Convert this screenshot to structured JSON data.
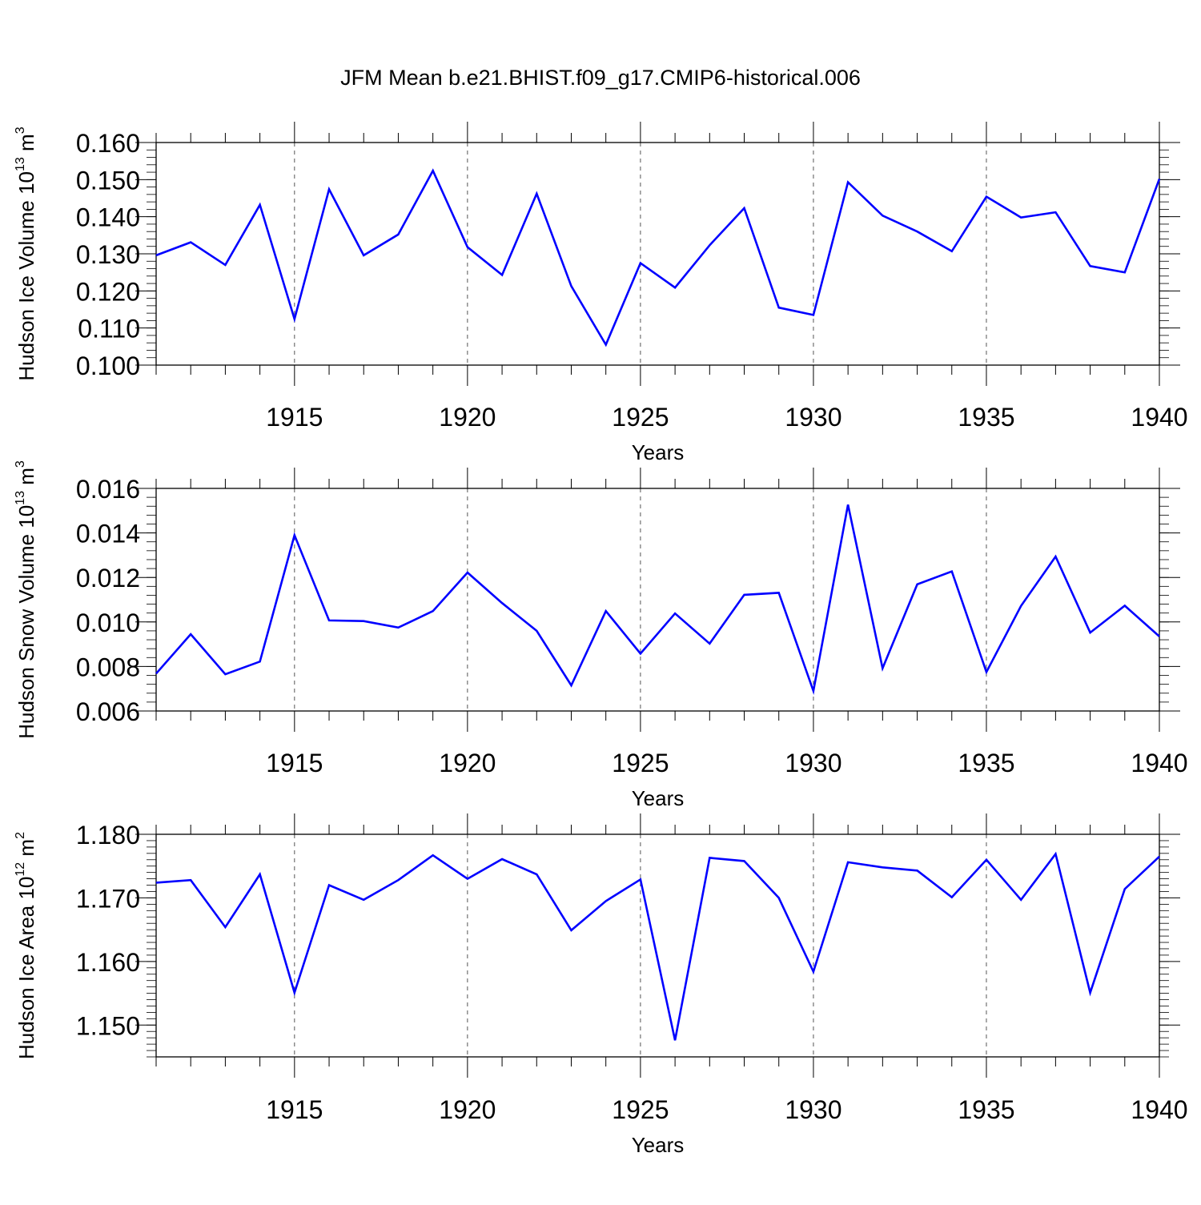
{
  "title": "JFM Mean b.e21.BHIST.f09_g17.CMIP6-historical.006",
  "line_color": "#0000ff",
  "chart_data": [
    {
      "type": "line",
      "ylabel": "Hudson Ice Volume 10",
      "ylabel_exp": "13",
      "ylabel_unit": " m",
      "ylabel_unit_exp": "3",
      "xlabel": "Years",
      "xlim": [
        1911,
        1940
      ],
      "ylim": [
        0.1,
        0.16
      ],
      "yticks": [
        0.1,
        0.11,
        0.12,
        0.13,
        0.14,
        0.15,
        0.16
      ],
      "ytick_labels": [
        "0.100",
        "0.110",
        "0.120",
        "0.130",
        "0.140",
        "0.150",
        "0.160"
      ],
      "yminor_step": 0.002,
      "xticks": [
        1915,
        1920,
        1925,
        1930,
        1935,
        1940
      ],
      "xtick_labels": [
        "1915",
        "1920",
        "1925",
        "1930",
        "1935",
        "1940"
      ],
      "x": [
        1911,
        1912,
        1913,
        1914,
        1915,
        1916,
        1917,
        1918,
        1919,
        1920,
        1921,
        1922,
        1923,
        1924,
        1925,
        1926,
        1927,
        1928,
        1929,
        1930,
        1931,
        1932,
        1933,
        1934,
        1935,
        1936,
        1937,
        1938,
        1939,
        1940
      ],
      "values": [
        0.1296,
        0.1331,
        0.127,
        0.1432,
        0.1124,
        0.1474,
        0.1296,
        0.1352,
        0.1524,
        0.1318,
        0.1243,
        0.1462,
        0.1213,
        0.1055,
        0.1275,
        0.1209,
        0.1323,
        0.1423,
        0.1155,
        0.1135,
        0.1493,
        0.1403,
        0.136,
        0.1307,
        0.1454,
        0.1398,
        0.1412,
        0.1267,
        0.125,
        0.1502
      ]
    },
    {
      "type": "line",
      "ylabel": "Hudson Snow Volume 10",
      "ylabel_exp": "13",
      "ylabel_unit": " m",
      "ylabel_unit_exp": "3",
      "xlabel": "Years",
      "xlim": [
        1911,
        1940
      ],
      "ylim": [
        0.006,
        0.016
      ],
      "yticks": [
        0.006,
        0.008,
        0.01,
        0.012,
        0.014,
        0.016
      ],
      "ytick_labels": [
        "0.006",
        "0.008",
        "0.010",
        "0.012",
        "0.014",
        "0.016"
      ],
      "yminor_step": 0.0004,
      "xticks": [
        1915,
        1920,
        1925,
        1930,
        1935,
        1940
      ],
      "xtick_labels": [
        "1915",
        "1920",
        "1925",
        "1930",
        "1935",
        "1940"
      ],
      "x": [
        1911,
        1912,
        1913,
        1914,
        1915,
        1916,
        1917,
        1918,
        1919,
        1920,
        1921,
        1922,
        1923,
        1924,
        1925,
        1926,
        1927,
        1928,
        1929,
        1930,
        1931,
        1932,
        1933,
        1934,
        1935,
        1936,
        1937,
        1938,
        1939,
        1940
      ],
      "values": [
        0.00768,
        0.00945,
        0.00765,
        0.00822,
        0.0139,
        0.01007,
        0.01004,
        0.00975,
        0.01049,
        0.01222,
        0.01085,
        0.0096,
        0.00715,
        0.01049,
        0.00858,
        0.01038,
        0.00903,
        0.01122,
        0.01131,
        0.0069,
        0.01527,
        0.00792,
        0.01169,
        0.01227,
        0.00775,
        0.01072,
        0.01294,
        0.00952,
        0.01073,
        0.00935
      ]
    },
    {
      "type": "line",
      "ylabel": "Hudson Ice Area 10",
      "ylabel_exp": "12",
      "ylabel_unit": " m",
      "ylabel_unit_exp": "2",
      "xlabel": "Years",
      "xlim": [
        1911,
        1940
      ],
      "ylim": [
        1.145,
        1.18
      ],
      "yticks": [
        1.15,
        1.16,
        1.17,
        1.18
      ],
      "ytick_labels": [
        "1.150",
        "1.160",
        "1.170",
        "1.180"
      ],
      "yminor_step": 0.001,
      "xticks": [
        1915,
        1920,
        1925,
        1930,
        1935,
        1940
      ],
      "xtick_labels": [
        "1915",
        "1920",
        "1925",
        "1930",
        "1935",
        "1940"
      ],
      "x": [
        1911,
        1912,
        1913,
        1914,
        1915,
        1916,
        1917,
        1918,
        1919,
        1920,
        1921,
        1922,
        1923,
        1924,
        1925,
        1926,
        1927,
        1928,
        1929,
        1930,
        1931,
        1932,
        1933,
        1934,
        1935,
        1936,
        1937,
        1938,
        1939,
        1940
      ],
      "values": [
        1.1724,
        1.1728,
        1.1654,
        1.1737,
        1.1551,
        1.172,
        1.1697,
        1.1728,
        1.1767,
        1.173,
        1.1761,
        1.1737,
        1.1649,
        1.1695,
        1.1729,
        1.1476,
        1.1763,
        1.1758,
        1.17,
        1.1584,
        1.1756,
        1.1748,
        1.1743,
        1.1701,
        1.176,
        1.1697,
        1.1769,
        1.1551,
        1.1714,
        1.1765
      ]
    }
  ]
}
